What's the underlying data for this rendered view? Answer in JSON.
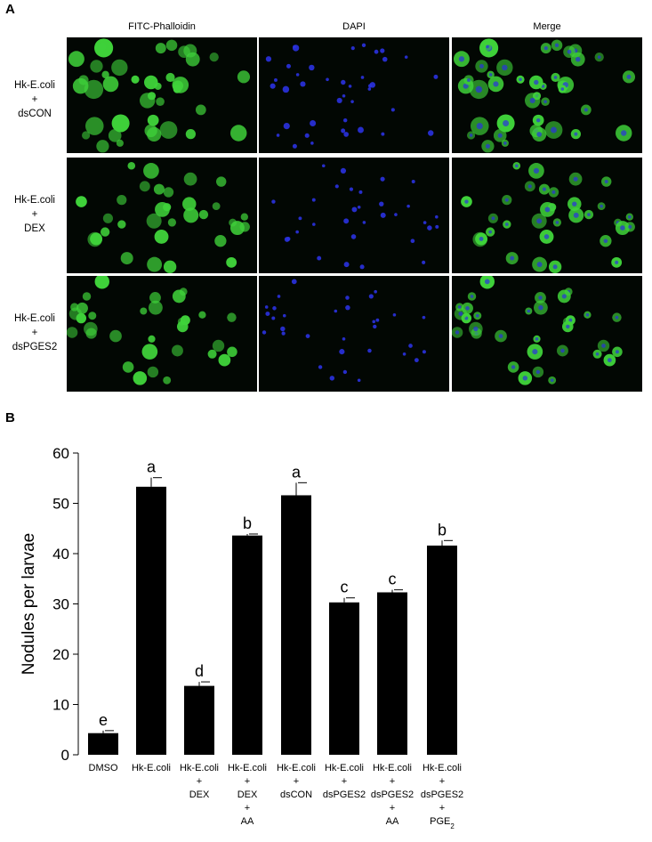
{
  "panel_a": {
    "letter": "A",
    "columns": [
      "FITC-Phalloidin",
      "DAPI",
      "Merge"
    ],
    "rows": [
      {
        "lines": [
          "Hk-E.coli",
          "+",
          "dsCON"
        ]
      },
      {
        "lines": [
          "Hk-E.coli",
          "+",
          "DEX"
        ]
      },
      {
        "lines": [
          "Hk-E.coli",
          "+",
          "dsPGES2"
        ]
      }
    ],
    "colors": {
      "fitc": "#3fd23a",
      "dapi": "#2a32e0",
      "background": "#020703"
    }
  },
  "panel_b": {
    "letter": "B"
  },
  "chart_data": {
    "type": "bar",
    "ylabel": "Nodules per larvae",
    "xlabel": "",
    "ylim": [
      0,
      60
    ],
    "yticks": [
      0,
      10,
      20,
      30,
      40,
      50,
      60
    ],
    "categories": [
      [
        "DMSO"
      ],
      [
        "Hk-E.coli"
      ],
      [
        "Hk-E.coli",
        "+",
        "DEX"
      ],
      [
        "Hk-E.coli",
        "+",
        "DEX",
        "+",
        "AA"
      ],
      [
        "Hk-E.coli",
        "+",
        "dsCON"
      ],
      [
        "Hk-E.coli",
        "+",
        "dsPGES2"
      ],
      [
        "Hk-E.coli",
        "+",
        "dsPGES2",
        "+",
        "AA"
      ],
      [
        "Hk-E.coli",
        "+",
        "dsPGES2",
        "+",
        "PGE2"
      ]
    ],
    "values": [
      4.3,
      53.3,
      13.7,
      43.6,
      51.6,
      30.3,
      32.3,
      41.6
    ],
    "errors": [
      0.5,
      1.8,
      0.8,
      0.3,
      2.5,
      0.9,
      0.5,
      1.0
    ],
    "letters": [
      "e",
      "a",
      "d",
      "b",
      "a",
      "c",
      "c",
      "b"
    ],
    "bar_color": "#000000"
  }
}
